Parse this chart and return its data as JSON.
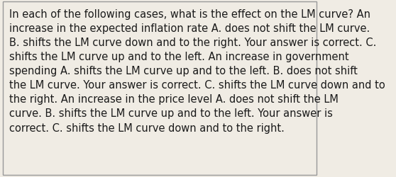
{
  "text": "In each of the following cases, what is the effect on the LM curve? An increase in the expected inflation rate A. does not shift the LM curve. B. shifts the LM curve down and to the right. Your answer is correct. C. shifts the LM curve up and to the left. An increase in government spending A. shifts the LM curve up and to the left. B. does not shift the LM curve. Your answer is correct. C. shifts the LM curve down and to the right. An increase in the price level A. does not shift the LM curve. B. shifts the LM curve up and to the left. Your answer is correct. C. shifts the LM curve down and to the right.",
  "background_color": "#f0ece4",
  "text_color": "#1a1a1a",
  "border_color": "#999999",
  "font_size": 10.5,
  "figsize": [
    5.58,
    2.51
  ],
  "dpi": 100
}
